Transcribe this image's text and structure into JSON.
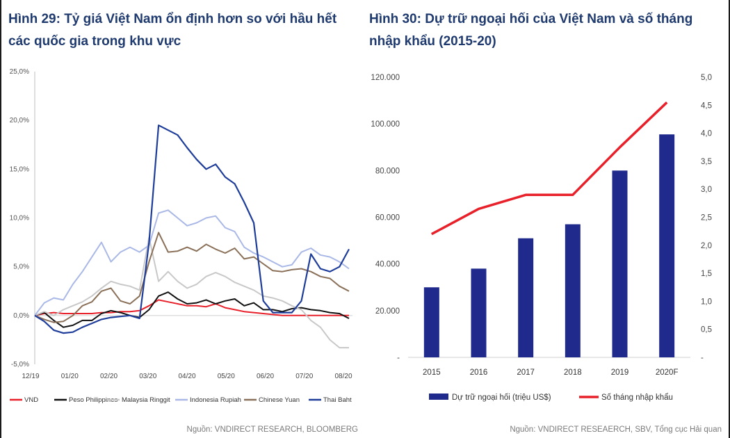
{
  "colors": {
    "title": "#1f3a6e",
    "VND": "#e8202a",
    "Peso Philippines": "#111111",
    "Malaysia Ringgit": "#c8c8c8",
    "Indonesia Rupiah": "#a9b8e6",
    "Chinese Yuan": "#8a7058",
    "Thai Baht": "#1e3d9a",
    "bar": "#1f2a8c",
    "line": "#e8202a"
  },
  "chart_data": [
    {
      "type": "line",
      "title": "Hình 29: Tỷ giá Việt Nam ổn định hơn so với hầu hết các quốc gia trong khu vực",
      "source": "Nguồn: VNDIRECT RESEARCH, BLOOMBERG",
      "x_ticks": [
        "12/19",
        "01/20",
        "02/20",
        "03/20",
        "04/20",
        "05/20",
        "06/20",
        "07/20",
        "08/20"
      ],
      "y_ticks": [
        "25,0%",
        "20,0%",
        "15,0%",
        "10,0%",
        "5,0%",
        "0,0%",
        "-5,0%"
      ],
      "ylim": [
        -5,
        25
      ],
      "legend_position": "bottom",
      "series": [
        {
          "name": "VND",
          "values": [
            0,
            0.2,
            0.3,
            0.2,
            0.2,
            0.2,
            0.2,
            0.3,
            0.3,
            0.4,
            0.4,
            0.5,
            1.0,
            1.6,
            1.4,
            1.2,
            1.0,
            1.0,
            0.9,
            1.2,
            0.8,
            0.6,
            0.4,
            0.3,
            0.2,
            0.1,
            0,
            0,
            0,
            0,
            0,
            0,
            0,
            0
          ]
        },
        {
          "name": "Peso Philippines",
          "values": [
            0,
            0.3,
            -0.5,
            -1.2,
            -1.0,
            -0.5,
            -0.5,
            0.2,
            0.5,
            0.3,
            0,
            -0.2,
            0.6,
            2.0,
            2.4,
            1.7,
            1.2,
            1.3,
            1.6,
            1.2,
            1.5,
            1.7,
            1.0,
            1.3,
            0.6,
            0.6,
            0.4,
            0.7,
            0.8,
            0.6,
            0.5,
            0.3,
            0.2,
            -0.3
          ]
        },
        {
          "name": "Malaysia Ringgit",
          "values": [
            0,
            0.4,
            0,
            0.6,
            1.0,
            1.4,
            2.0,
            2.8,
            3.5,
            3.2,
            3.0,
            2.6,
            8.0,
            3.5,
            4.5,
            3.5,
            2.8,
            3.2,
            4.0,
            4.4,
            4.0,
            3.4,
            3.0,
            2.6,
            2.0,
            1.8,
            1.5,
            1.0,
            0.6,
            -0.5,
            -1.2,
            -2.5,
            -3.3,
            -3.3
          ]
        },
        {
          "name": "Indonesia Rupiah",
          "values": [
            0,
            1.3,
            1.8,
            1.6,
            3.2,
            4.5,
            6.0,
            7.5,
            5.5,
            6.5,
            7.0,
            6.5,
            7.2,
            10.5,
            10.8,
            10.0,
            9.2,
            9.5,
            10.0,
            10.2,
            9.0,
            8.6,
            7.0,
            6.4,
            6.0,
            5.5,
            5.0,
            5.2,
            6.5,
            6.9,
            6.2,
            6.0,
            5.5,
            4.8
          ]
        },
        {
          "name": "Chinese Yuan",
          "values": [
            0,
            -0.4,
            -0.7,
            -0.6,
            0,
            1.0,
            1.4,
            2.5,
            2.8,
            1.5,
            1.2,
            2.0,
            5.5,
            8.5,
            6.5,
            6.6,
            7.0,
            6.6,
            7.3,
            6.8,
            6.4,
            6.9,
            5.8,
            6.0,
            5.3,
            4.6,
            4.5,
            4.7,
            4.8,
            4.5,
            4.0,
            3.8,
            3.0,
            2.5
          ]
        },
        {
          "name": "Thai Baht",
          "values": [
            0,
            -0.6,
            -1.5,
            -1.8,
            -1.7,
            -1.2,
            -0.8,
            -0.4,
            -0.2,
            -0.1,
            0,
            -0.3,
            7.5,
            19.5,
            19.0,
            18.5,
            17.2,
            16.0,
            15.0,
            15.5,
            14.2,
            13.5,
            11.6,
            9.5,
            1.5,
            0.3,
            0.3,
            0.3,
            1.5,
            6.3,
            4.8,
            4.5,
            5.0,
            6.8
          ]
        }
      ]
    },
    {
      "type": "bar",
      "title": "Hình 30: Dự trữ ngoại hối của Việt Nam và số tháng nhập khẩu (2015-20)",
      "source": "Nguồn: VNDIRECT RESEAERCH, SBV, Tổng cục Hải quan",
      "categories": [
        "2015",
        "2016",
        "2017",
        "2018",
        "2019",
        "2020F"
      ],
      "y_left_ticks": [
        "120.000",
        "100.000",
        "80.000",
        "60.000",
        "40.000",
        "20.000",
        "-"
      ],
      "y_right_ticks": [
        "5,0",
        "4,5",
        "4,0",
        "3,5",
        "3,0",
        "2,5",
        "2,0",
        "1,5",
        "1,0",
        "0,5",
        "-"
      ],
      "ylim_left": [
        0,
        120000
      ],
      "ylim_right": [
        0,
        5
      ],
      "legend_position": "bottom",
      "series": [
        {
          "name": "Dự trữ ngoại hối (triệu US$)",
          "kind": "bar",
          "axis": "left",
          "values": [
            30000,
            38000,
            51000,
            57000,
            80000,
            95500
          ]
        },
        {
          "name": "Số tháng nhập khẩu",
          "kind": "line",
          "axis": "right",
          "values": [
            2.2,
            2.65,
            2.9,
            2.9,
            3.75,
            4.55
          ]
        }
      ]
    }
  ]
}
